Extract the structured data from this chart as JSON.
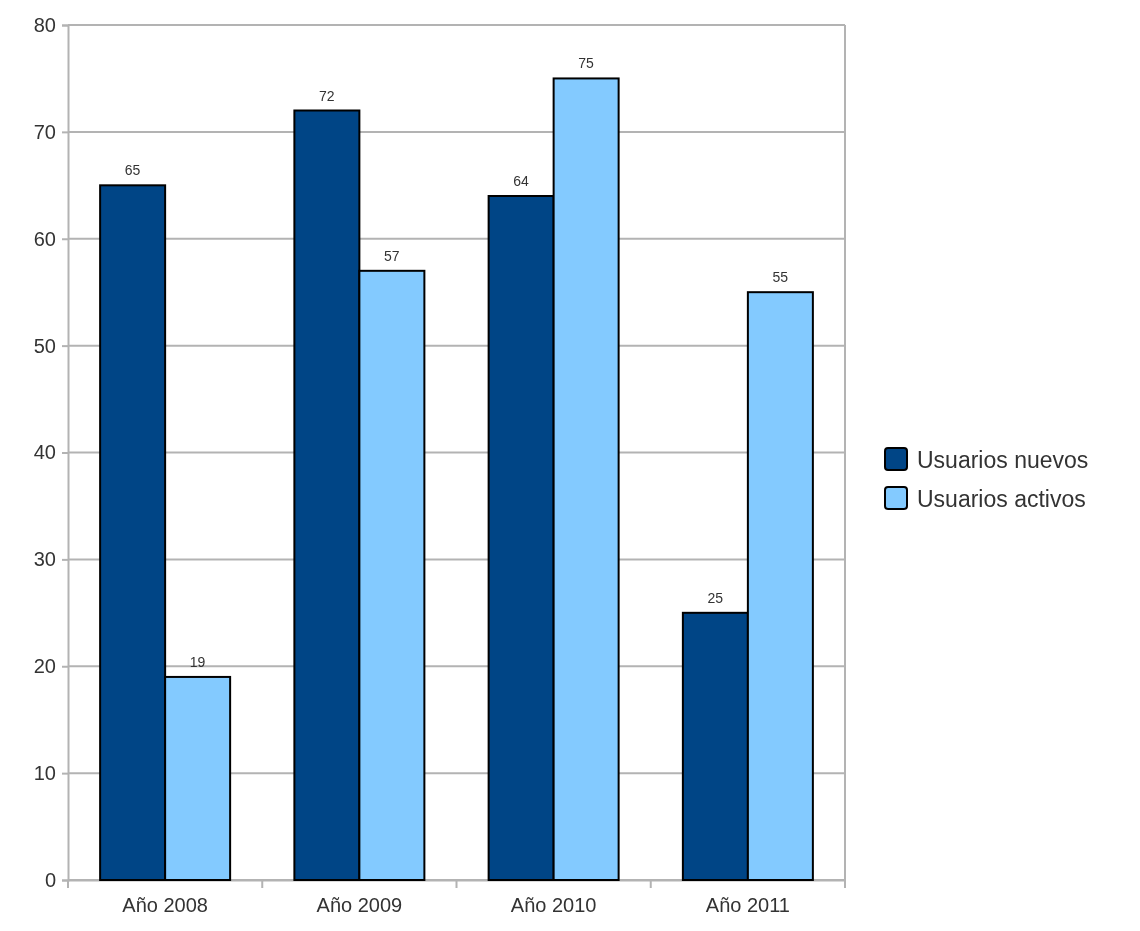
{
  "chart_data": {
    "type": "bar",
    "categories": [
      "Año 2008",
      "Año 2009",
      "Año 2010",
      "Año 2011"
    ],
    "series": [
      {
        "name": "Usuarios nuevos",
        "color": "#004586",
        "values": [
          65,
          72,
          64,
          25
        ]
      },
      {
        "name": "Usuarios activos",
        "color": "#83caff",
        "values": [
          19,
          57,
          75,
          55
        ]
      }
    ],
    "ylim": [
      0,
      80
    ],
    "yticks": [
      0,
      10,
      20,
      30,
      40,
      50,
      60,
      70,
      80
    ],
    "grid": "y",
    "legend": "right",
    "data_labels": true
  }
}
